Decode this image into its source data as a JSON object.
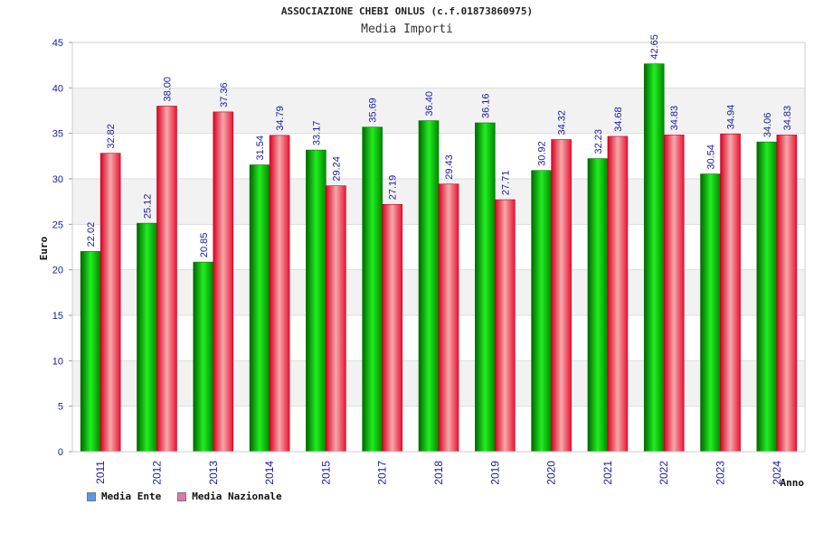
{
  "chart_data": {
    "type": "bar",
    "title": "ASSOCIAZIONE CHEBI ONLUS (c.f.01873860975)",
    "subtitle": "Media Importi",
    "xlabel": "Anno",
    "ylabel": "Euro",
    "ylim": [
      0,
      45
    ],
    "yticks": [
      0,
      5,
      10,
      15,
      20,
      25,
      30,
      35,
      40,
      45
    ],
    "categories": [
      "2011",
      "2012",
      "2013",
      "2014",
      "2015",
      "2017",
      "2018",
      "2019",
      "2020",
      "2021",
      "2022",
      "2023",
      "2024"
    ],
    "series": [
      {
        "name": "Media Ente",
        "color": "#00cc00",
        "legend_color": "#5599ee",
        "values": [
          22.02,
          25.12,
          20.85,
          31.54,
          33.17,
          35.69,
          36.4,
          36.16,
          30.92,
          32.23,
          42.65,
          30.54,
          34.06
        ],
        "labels": [
          "22.02",
          "25.12",
          "20.85",
          "31.54",
          "33.17",
          "35.69",
          "36.40",
          "36.16",
          "30.92",
          "32.23",
          "42.65",
          "30.54",
          "34.06"
        ]
      },
      {
        "name": "Media Nazionale",
        "color": "#ee1133",
        "legend_color": "#dd77aa",
        "values": [
          32.82,
          38.0,
          37.36,
          34.79,
          29.24,
          27.19,
          29.43,
          27.71,
          34.32,
          34.68,
          34.83,
          34.94,
          34.83
        ],
        "labels": [
          "32.82",
          "38.00",
          "37.36",
          "34.79",
          "29.24",
          "27.19",
          "29.43",
          "27.71",
          "34.32",
          "34.68",
          "34.83",
          "34.94",
          "34.83"
        ]
      }
    ],
    "grid": true,
    "legend_position": "bottom-left"
  }
}
